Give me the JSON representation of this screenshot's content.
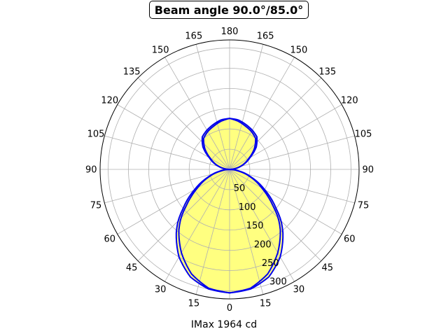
{
  "chart_data": {
    "type": "polar",
    "title": "Beam angle 90.0°/85.0°",
    "xlabel": "IMax 1964 cd",
    "angle_tick_labels": [
      "0",
      "15",
      "30",
      "45",
      "60",
      "75",
      "90",
      "105",
      "120",
      "135",
      "150",
      "165",
      "180",
      "165",
      "150",
      "135",
      "120",
      "105",
      "90",
      "75",
      "60",
      "45",
      "30",
      "15"
    ],
    "angle_tick_degrees": [
      0,
      15,
      30,
      45,
      60,
      75,
      90,
      105,
      120,
      135,
      150,
      165,
      180,
      195,
      210,
      225,
      240,
      255,
      270,
      285,
      300,
      315,
      330,
      345
    ],
    "radial_ticks": [
      50,
      100,
      150,
      200,
      250,
      300
    ],
    "rmax": 320,
    "grid": true,
    "fill_color": "#ffff80",
    "line_color": "#0000ee",
    "series": [
      {
        "curve_outer": {
          "angles": [
            0,
            10,
            20,
            30,
            40,
            45,
            50,
            55,
            60,
            70,
            80,
            90,
            100,
            110,
            120,
            130,
            140,
            150,
            160,
            170,
            180
          ],
          "values": [
            305,
            300,
            283,
            250,
            205,
            180,
            150,
            125,
            100,
            58,
            25,
            0,
            17,
            38,
            58,
            86,
            105,
            112,
            118,
            124,
            126
          ]
        },
        "curve_inner": {
          "angles": [
            0,
            10,
            20,
            30,
            40,
            45,
            50,
            55,
            60,
            70,
            80,
            90,
            100,
            110,
            120,
            130,
            140,
            150,
            160,
            170,
            180
          ],
          "values": [
            305,
            298,
            275,
            238,
            195,
            170,
            140,
            115,
            92,
            55,
            22,
            0,
            17,
            36,
            55,
            80,
            100,
            108,
            114,
            121,
            126
          ]
        }
      }
    ]
  }
}
